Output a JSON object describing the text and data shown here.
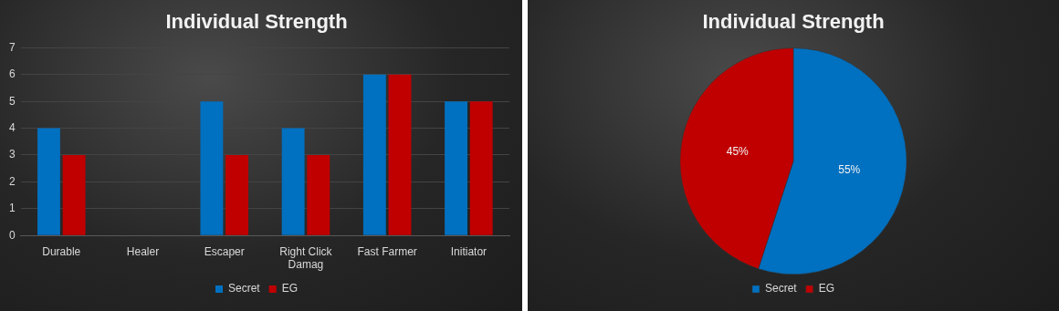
{
  "chart_data": [
    {
      "type": "bar",
      "title": "Individual Strength",
      "categories": [
        "Durable",
        "Healer",
        "Escaper",
        "Right Click Damag",
        "Fast Farmer",
        "Initiator"
      ],
      "series": [
        {
          "name": "Secret",
          "color": "#0070c0",
          "values": [
            4,
            0,
            5,
            4,
            6,
            5
          ]
        },
        {
          "name": "EG",
          "color": "#c00000",
          "values": [
            3,
            0,
            3,
            3,
            6,
            5
          ]
        }
      ],
      "ylim": [
        0,
        7
      ],
      "yticks": [
        0,
        1,
        2,
        3,
        4,
        5,
        6,
        7
      ],
      "grid": "y",
      "legend": "bottom"
    },
    {
      "type": "pie",
      "title": "Individual Strength",
      "categories": [
        "Secret",
        "EG"
      ],
      "values": [
        55,
        45
      ],
      "colors": [
        "#0070c0",
        "#c00000"
      ],
      "value_labels": [
        "55%",
        "45%"
      ],
      "legend": "bottom"
    }
  ]
}
